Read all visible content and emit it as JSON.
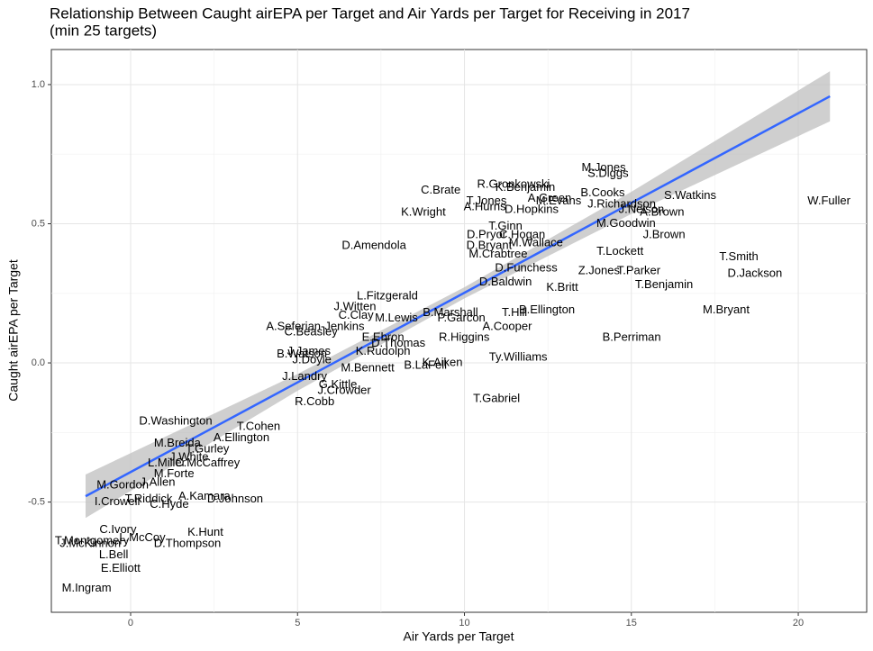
{
  "chart_data": {
    "type": "scatter",
    "title": "Relationship Between Caught airEPA per Target and Air Yards per Target for Receiving in 2017",
    "subtitle": "(min 25 targets)",
    "x_label": "Air Yards per Target",
    "y_label": "Caught airEPA per Target",
    "xlim": [
      -2.375,
      22.05
    ],
    "ylim": [
      -0.896,
      1.126
    ],
    "xticks": [
      0,
      5,
      10,
      15,
      20
    ],
    "yticks": [
      -0.5,
      {
        "value": 0,
        "label": "0.0"
      },
      0.5,
      {
        "value": 1,
        "label": "1.0"
      }
    ],
    "grid": true,
    "minor_grid": true,
    "color": "#000000",
    "labels": [
      "M.Jones",
      "S.Diggs",
      "R.Gronkowski",
      "K.Benjamin",
      "B.Cooks",
      "S.Watkins",
      "W.Fuller",
      "C.Brate",
      "T.Jones",
      "A.Hurns",
      "A.Green",
      "M.Evans",
      "J.Richardson",
      "D.Hopkins",
      "J.Nelson",
      "A.Brown",
      "K.Wright",
      "M.Goodwin",
      "T.Ginn",
      "J.Brown",
      "C.Hogan",
      "D.Pryor",
      "D.Amendola",
      "D.Bryant",
      "M.Wallace",
      "T.Lockett",
      "M.Crabtree",
      "T.Smith",
      "D.Funchess",
      "Z.Jones",
      "T.Parker",
      "D.Jackson",
      "T.Benjamin",
      "K.Britt",
      "D.Baldwin",
      "L.Fitzgerald",
      "J.Witten",
      "C.Clay",
      "T.Hill",
      "B.Ellington",
      "B.Marshall",
      "M.Lewis",
      "P.Garcon",
      "A.Seferian-Jenkins",
      "A.Cooper",
      "M.Bryant",
      "C.Beasley",
      "E.Ebron",
      "D.Thomas",
      "R.Higgins",
      "B.Perriman",
      "J.James",
      "K.Rudolph",
      "B.Watson",
      "Ty.Williams",
      "J.Doyle",
      "B.LaFell",
      "K.Aiken",
      "M.Bennett",
      "J.Landry",
      "G.Kittle",
      "J.Crowder",
      "R.Cobb",
      "T.Gabriel",
      "D.Washington",
      "T.Cohen",
      "A.Ellington",
      "M.Breida",
      "T.Gurley",
      "J.White",
      "C.McCaffrey",
      "L.Miller",
      "M.Forte",
      "J.Allen",
      "M.Gordon",
      "A.Kamara",
      "D.Johnson",
      "T.Riddick",
      "C.Hyde",
      "I.Crowell",
      "C.Ivory",
      "L.McCoy",
      "K.Hunt",
      "T.Montgomery",
      "J.McKinnon",
      "D.Thompson",
      "L.Bell",
      "E.Elliott",
      "M.Ingram"
    ],
    "x": [
      14.17,
      14.3,
      11.47,
      11.82,
      14.14,
      16.76,
      20.92,
      9.29,
      10.66,
      10.61,
      12.55,
      12.82,
      14.71,
      12.01,
      15.3,
      15.92,
      8.77,
      14.84,
      11.23,
      15.98,
      11.73,
      10.66,
      7.29,
      10.74,
      12.14,
      14.66,
      11.01,
      18.22,
      11.85,
      14.03,
      15.22,
      18.7,
      15.98,
      12.93,
      11.23,
      7.69,
      6.72,
      6.75,
      11.5,
      12.47,
      9.58,
      7.96,
      9.91,
      5.53,
      11.28,
      17.84,
      5.4,
      7.56,
      8.02,
      9.99,
      15.01,
      5.34,
      7.56,
      5.13,
      11.61,
      5.43,
      8.83,
      9.34,
      7.1,
      5.21,
      6.21,
      6.4,
      5.51,
      10.96,
      1.35,
      3.83,
      3.32,
      1.4,
      2.3,
      1.75,
      2.3,
      1.08,
      1.3,
      0.81,
      -0.24,
      2.21,
      3.13,
      0.54,
      1.16,
      -0.4,
      -0.38,
      0.35,
      2.24,
      -1.16,
      -1.21,
      1.7,
      -0.51,
      -0.3,
      -1.32
    ],
    "values": [
      0.7,
      0.68,
      0.64,
      0.63,
      0.61,
      0.6,
      0.58,
      0.62,
      0.58,
      0.56,
      0.59,
      0.58,
      0.57,
      0.55,
      0.55,
      0.54,
      0.54,
      0.5,
      0.49,
      0.46,
      0.46,
      0.46,
      0.42,
      0.42,
      0.43,
      0.4,
      0.39,
      0.38,
      0.34,
      0.33,
      0.33,
      0.32,
      0.28,
      0.27,
      0.29,
      0.24,
      0.2,
      0.17,
      0.18,
      0.19,
      0.18,
      0.16,
      0.16,
      0.13,
      0.13,
      0.19,
      0.11,
      0.09,
      0.07,
      0.09,
      0.09,
      0.04,
      0.04,
      0.03,
      0.02,
      0.01,
      -0.01,
      0.0,
      -0.02,
      -0.05,
      -0.08,
      -0.1,
      -0.14,
      -0.13,
      -0.21,
      -0.23,
      -0.27,
      -0.29,
      -0.31,
      -0.34,
      -0.36,
      -0.36,
      -0.4,
      -0.43,
      -0.44,
      -0.48,
      -0.49,
      -0.49,
      -0.51,
      -0.5,
      -0.6,
      -0.63,
      -0.61,
      -0.64,
      -0.65,
      -0.65,
      -0.69,
      -0.74,
      -0.81
    ],
    "fit": {
      "x": [
        -1.35,
        5,
        10,
        15,
        20.95
      ],
      "values": [
        -0.479,
        -0.07,
        0.252,
        0.575,
        0.958
      ],
      "lower": [
        -0.557,
        -0.1,
        0.232,
        0.535,
        0.868
      ],
      "upper": [
        -0.401,
        -0.04,
        0.272,
        0.615,
        1.048
      ],
      "color": "#3366ff",
      "band_color": "#bfbfbf"
    }
  }
}
